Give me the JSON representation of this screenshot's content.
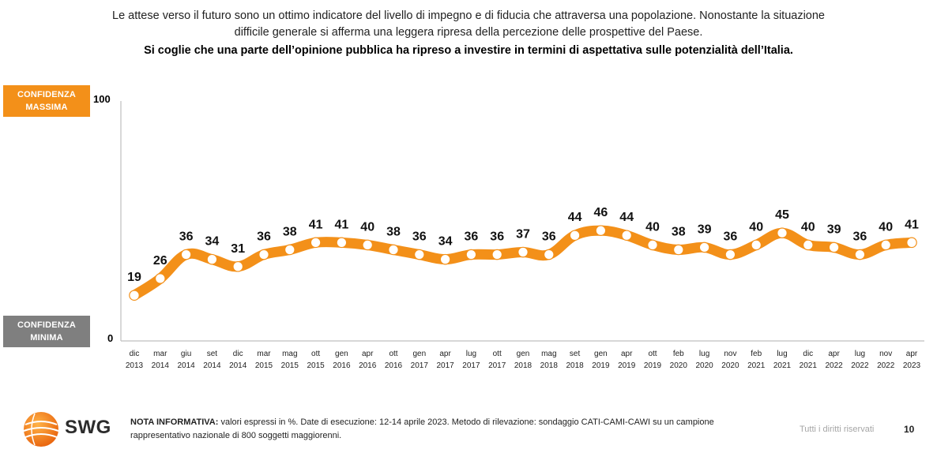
{
  "header": {
    "line1": "Le attese verso il futuro sono un ottimo indicatore del livello di impegno e di fiducia che attraversa una popolazione. Nonostante la situazione",
    "line2": "difficile generale si afferma una leggera ripresa della percezione delle prospettive del Paese.",
    "line3": "Si coglie che una parte dell’opinione pubblica ha ripreso a investire in termini di aspettativa sulle potenzialità dell’Italia."
  },
  "badges": {
    "max_line1": "CONFIDENZA",
    "max_line2": "MASSIMA",
    "min_line1": "CONFIDENZA",
    "min_line2": "MINIMA"
  },
  "chart_data": {
    "type": "line",
    "ylim": [
      0,
      100
    ],
    "yticks": [
      "100",
      "0"
    ],
    "x": [
      [
        "dic",
        "2013"
      ],
      [
        "mar",
        "2014"
      ],
      [
        "giu",
        "2014"
      ],
      [
        "set",
        "2014"
      ],
      [
        "dic",
        "2014"
      ],
      [
        "mar",
        "2015"
      ],
      [
        "mag",
        "2015"
      ],
      [
        "ott",
        "2015"
      ],
      [
        "gen",
        "2016"
      ],
      [
        "apr",
        "2016"
      ],
      [
        "ott",
        "2016"
      ],
      [
        "gen",
        "2017"
      ],
      [
        "apr",
        "2017"
      ],
      [
        "lug",
        "2017"
      ],
      [
        "ott",
        "2017"
      ],
      [
        "gen",
        "2018"
      ],
      [
        "mag",
        "2018"
      ],
      [
        "set",
        "2018"
      ],
      [
        "gen",
        "2019"
      ],
      [
        "apr",
        "2019"
      ],
      [
        "ott",
        "2019"
      ],
      [
        "feb",
        "2020"
      ],
      [
        "lug",
        "2020"
      ],
      [
        "nov",
        "2020"
      ],
      [
        "feb",
        "2021"
      ],
      [
        "lug",
        "2021"
      ],
      [
        "dic",
        "2021"
      ],
      [
        "apr",
        "2022"
      ],
      [
        "lug",
        "2022"
      ],
      [
        "nov",
        "2022"
      ],
      [
        "apr",
        "2023"
      ]
    ],
    "values": [
      19,
      26,
      36,
      34,
      31,
      36,
      38,
      41,
      41,
      40,
      38,
      36,
      34,
      36,
      36,
      37,
      36,
      44,
      46,
      44,
      40,
      38,
      39,
      36,
      40,
      45,
      40,
      39,
      36,
      40,
      41
    ],
    "colors": {
      "line": "#f39019",
      "marker_fill": "#ffffff",
      "axis": "#bfbfbf"
    },
    "grid": false,
    "legend": "none"
  },
  "footer": {
    "note_label": "NOTA INFORMATIVA:",
    "note_text": " valori espressi in %. Date di esecuzione: 12-14 aprile 2023. Metodo di rilevazione: sondaggio CATI-CAMI-CAWI su un campione rappresentativo nazionale di 800 soggetti maggiorenni.",
    "rights": "Tutti i diritti riservati",
    "page": "10",
    "logo_text": "SWG",
    "logo_icon": "globe-icon"
  }
}
